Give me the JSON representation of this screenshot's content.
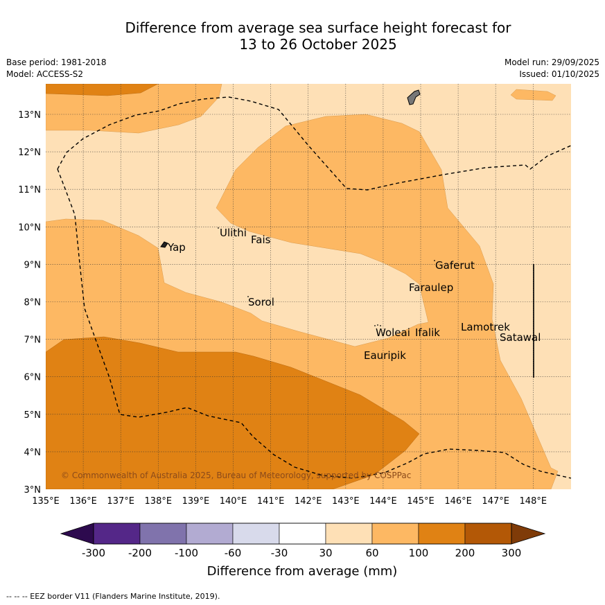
{
  "title": {
    "line1": "Difference from average sea surface height forecast for",
    "line2": "13 to 26 October 2025"
  },
  "meta": {
    "base_period": "Base period: 1981-2018",
    "model": "Model: ACCESS-S2",
    "model_run": "Model run: 29/09/2025",
    "issued": "Issued: 01/10/2025"
  },
  "axes": {
    "lon_range": [
      135,
      149
    ],
    "lat_range": [
      3,
      13.8
    ],
    "lon_ticks": [
      "135°E",
      "136°E",
      "137°E",
      "138°E",
      "139°E",
      "140°E",
      "141°E",
      "142°E",
      "143°E",
      "144°E",
      "145°E",
      "146°E",
      "147°E",
      "148°E"
    ],
    "lat_ticks": [
      "3°N",
      "4°N",
      "5°N",
      "6°N",
      "7°N",
      "8°N",
      "9°N",
      "10°N",
      "11°N",
      "12°N",
      "13°N"
    ]
  },
  "places": {
    "yap": "Yap",
    "ulithi": "Ulithi",
    "fais": "Fais",
    "sorol": "Sorol",
    "gaferut": "Gaferut",
    "faraulep": "Faraulep",
    "woleai": "Woleai",
    "ifalik": "Ifalik",
    "lamotrek": "Lamotrek",
    "satawal": "Satawal",
    "eauripik": "Eauripik"
  },
  "copyright": "© Commonwealth of Australia 2025, Bureau of Meteorology, supported by COSPPac",
  "legend": {
    "label": "Difference from average (mm)",
    "ticks": [
      "-300",
      "-200",
      "-100",
      "-60",
      "-30",
      "30",
      "60",
      "100",
      "200",
      "300"
    ],
    "colors": {
      "below_300": "#2d0a4e",
      "n300_200": "#542788",
      "n200_100": "#8073ac",
      "n100_60": "#b2abd2",
      "n60_30": "#d8daeb",
      "n30_30": "#ffffff",
      "p30_60": "#fee0b6",
      "p60_100": "#fdb863",
      "p100_200": "#e08214",
      "p200_300": "#b35806",
      "above_300": "#7f3b08"
    }
  },
  "footer": "--  --  -- EEZ border V11 (Flanders Marine Institute, 2019)."
}
